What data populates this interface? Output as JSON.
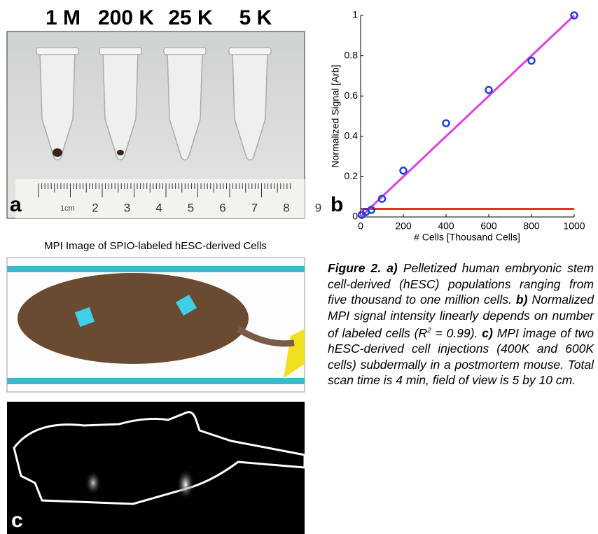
{
  "panel_a": {
    "tube_labels": [
      "1 M",
      "200 K",
      "25 K",
      "5 K"
    ],
    "letter": "a",
    "ruler_unit": "1cm",
    "ruler_numbers": [
      "2",
      "3",
      "4",
      "5",
      "6",
      "7",
      "8",
      "9"
    ]
  },
  "chart_data": {
    "type": "scatter",
    "letter": "b",
    "xlabel": "# Cells [Thousand Cells]",
    "ylabel": "Normalized Signal [Arb]",
    "x": [
      5,
      25,
      50,
      100,
      200,
      400,
      600,
      800,
      1000
    ],
    "values": [
      0.01,
      0.025,
      0.035,
      0.09,
      0.23,
      0.465,
      0.63,
      0.775,
      1.0
    ],
    "color": "#1f3fe0",
    "fit_line": {
      "color": "#e040e0",
      "x": [
        0,
        1000
      ],
      "y": [
        0,
        1
      ]
    },
    "noise_line": {
      "color": "#e8301c",
      "x": [
        0,
        1000
      ],
      "y": [
        0.04,
        0.04
      ]
    },
    "xlim": [
      0,
      1000
    ],
    "ylim": [
      0,
      1
    ],
    "xticks": [
      0,
      200,
      400,
      600,
      800,
      1000
    ],
    "yticks": [
      0,
      0.2,
      0.4,
      0.6,
      0.8,
      1
    ]
  },
  "panel_c": {
    "title": "MPI Image of SPIO-labeled hESC-derived Cells",
    "letter": "c"
  },
  "caption": {
    "figure": "Figure 2.",
    "a_label": "a)",
    "a_text": "Pelletized human embryonic stem cell-derived (hESC) populations ranging from five thousand to one million cells.",
    "b_label": "b)",
    "b_text": "Normalized MPI signal intensity linearly depends on number of labeled cells (R",
    "b_sup": "2",
    "b_text2": "= 0.99).",
    "c_label": "c)",
    "c_text": "MPI image of two hESC-derived cell injections (400K and 600K cells) subdermally in a postmortem mouse.  Total scan time is 4 min, field of view is 5 by 10 cm."
  }
}
